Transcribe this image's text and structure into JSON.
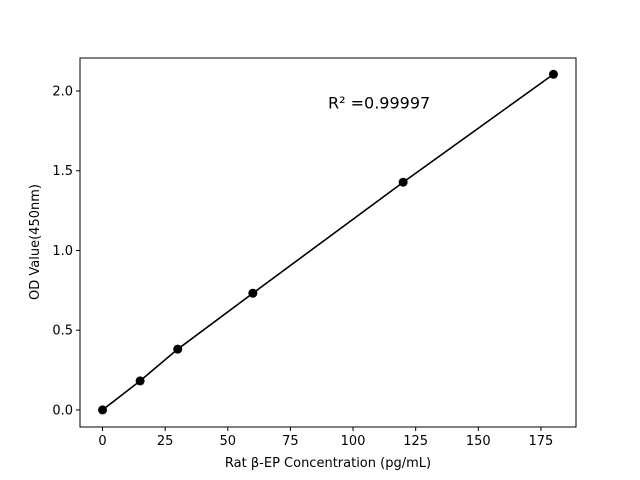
{
  "chart_data": {
    "type": "line",
    "title": "",
    "xlabel": "Rat β-EP Concentration (pg/mL)",
    "ylabel": "OD Value(450nm)",
    "xlim": [
      -9,
      189
    ],
    "ylim": [
      -0.107,
      2.207
    ],
    "xticks": [
      0,
      25,
      50,
      75,
      100,
      125,
      150,
      175
    ],
    "xtick_labels": [
      "0",
      "25",
      "50",
      "75",
      "100",
      "125",
      "150",
      "175"
    ],
    "yticks": [
      0.0,
      0.5,
      1.0,
      1.5,
      2.0
    ],
    "ytick_labels": [
      "0.0",
      "0.5",
      "1.0",
      "1.5",
      "2.0"
    ],
    "grid": false,
    "series": [
      {
        "x": [
          0,
          15,
          30,
          60,
          120,
          180
        ],
        "y": [
          0.0,
          0.182,
          0.381,
          0.732,
          1.428,
          2.105
        ],
        "color": "#000000",
        "marker": "circle"
      }
    ],
    "annotations": [
      {
        "text": "R² =0.99997",
        "x": 90,
        "y": 1.89
      }
    ]
  }
}
